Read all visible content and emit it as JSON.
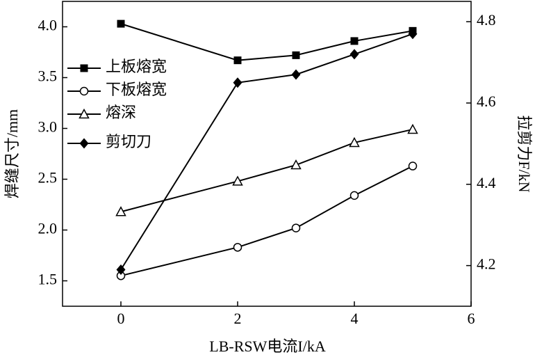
{
  "chart_data": {
    "type": "line",
    "x_label": "LB-RSW电流I/kA",
    "y_label": "焊缝尺寸/mm",
    "y2_label": "拉剪力F/kN",
    "xlim": [
      -1,
      6
    ],
    "xticks": [
      0,
      2,
      4,
      6
    ],
    "ylim": [
      1.25,
      4.25
    ],
    "yticks": [
      {
        "value": 1.5,
        "label": "1.5"
      },
      {
        "value": 2,
        "label": "2.0"
      },
      {
        "value": 2.5,
        "label": "2.5"
      },
      {
        "value": 3,
        "label": "3.0"
      },
      {
        "value": 3.5,
        "label": "3.5"
      },
      {
        "value": 4,
        "label": "4.0"
      }
    ],
    "y2lim": [
      4.1,
      4.85
    ],
    "y2ticks": [
      4.2,
      4.4,
      4.6,
      4.8
    ],
    "legend": "upper-left",
    "series": [
      {
        "name": "上板熔宽",
        "color": "#000000",
        "marker": "square",
        "x": [
          0,
          2,
          3,
          4,
          5
        ],
        "values": [
          4.03,
          3.67,
          3.72,
          3.86,
          3.96
        ]
      },
      {
        "name": "下板熔宽",
        "color": "#000000",
        "marker": "circle",
        "x": [
          0,
          2,
          3,
          4,
          5
        ],
        "values": [
          1.55,
          1.83,
          2.02,
          2.34,
          2.63
        ]
      },
      {
        "name": "熔深",
        "color": "#000000",
        "marker": "triangle",
        "x": [
          0,
          2,
          3,
          4,
          5
        ],
        "values": [
          2.18,
          2.48,
          2.64,
          2.86,
          2.99
        ]
      },
      {
        "name": "剪切刀",
        "color": "#000000",
        "marker": "diamond",
        "axis": "y2",
        "x": [
          0,
          2,
          3,
          4,
          5
        ],
        "values": [
          4.19,
          4.65,
          4.67,
          4.72,
          4.77
        ]
      }
    ]
  }
}
